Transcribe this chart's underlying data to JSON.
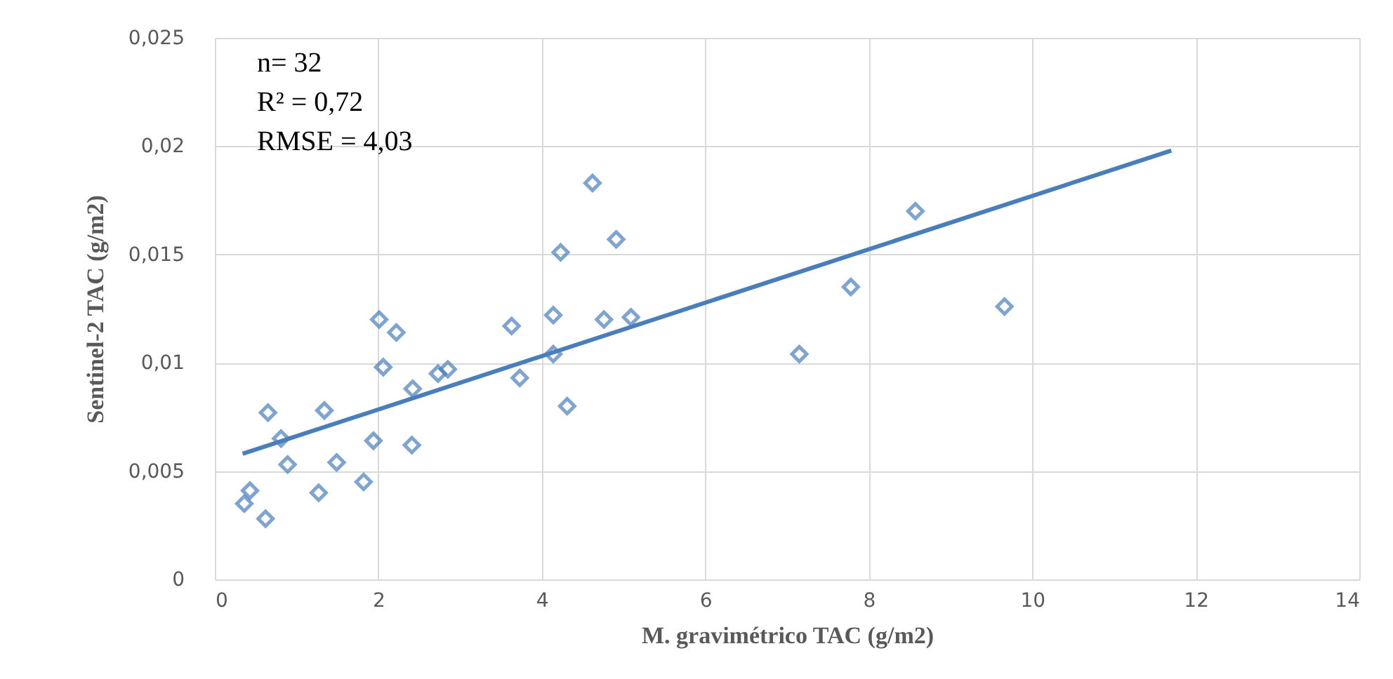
{
  "chart_data": {
    "type": "scatter",
    "xlabel": "M. gravimétrico TAC (g/m2)",
    "ylabel": "Sentinel-2 TAC (g/m2)",
    "annotations": [
      "n= 32",
      "R² = 0,72",
      "RMSE = 4,03"
    ],
    "xlim": [
      0,
      14
    ],
    "xticks": [
      0,
      2,
      4,
      6,
      8,
      10,
      12,
      14
    ],
    "ylim": [
      0,
      0.025
    ],
    "yticks": [
      0,
      {
        "value": 0.005,
        "label": "0,005"
      },
      {
        "value": 0.01,
        "label": "0,01"
      },
      {
        "value": 0.015,
        "label": "0,015"
      },
      {
        "value": 0.02,
        "label": "0,02"
      },
      {
        "value": 0.025,
        "label": "0,025"
      }
    ],
    "grid": true,
    "marker": "diamond",
    "series": [
      {
        "color": "#4a7ebb",
        "x": [
          0.36,
          0.43,
          0.62,
          0.65,
          0.81,
          0.89,
          1.27,
          1.34,
          1.49,
          1.82,
          1.94,
          2.01,
          2.06,
          2.22,
          2.41,
          2.42,
          2.73,
          2.85,
          3.63,
          3.73,
          4.14,
          4.14,
          4.23,
          4.31,
          4.62,
          4.76,
          4.91,
          5.09,
          7.15,
          7.78,
          8.57,
          9.66
        ],
        "values": [
          0.0035,
          0.0041,
          0.0028,
          0.0077,
          0.0065,
          0.0053,
          0.004,
          0.0078,
          0.0054,
          0.0045,
          0.0064,
          0.012,
          0.0098,
          0.0114,
          0.0062,
          0.0088,
          0.0095,
          0.0097,
          0.0117,
          0.0093,
          0.0104,
          0.0122,
          0.0151,
          0.008,
          0.0183,
          0.012,
          0.0157,
          0.0121,
          0.0104,
          0.0135,
          0.017,
          0.0126
        ]
      },
      {
        "type": "line",
        "color": "#4a7ebb",
        "x": [
          0.34,
          11.7
        ],
        "values": [
          0.0058,
          0.0198
        ],
        "marker": "none"
      }
    ]
  }
}
